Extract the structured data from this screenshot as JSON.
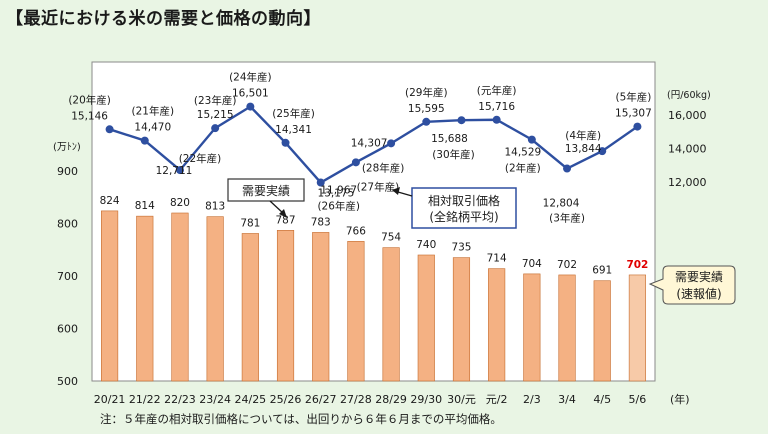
{
  "title": "【最近における米の需要と価格の動向】",
  "note": "注：５年産の相対取引価格については、出回りから６年６月までの平均価格。",
  "chart_data": {
    "type": "bar+line",
    "x_unit": "(年)",
    "categories": [
      "20/21",
      "21/22",
      "22/23",
      "23/24",
      "24/25",
      "25/26",
      "26/27",
      "27/28",
      "28/29",
      "29/30",
      "30/元",
      "元/2",
      "2/3",
      "3/4",
      "4/5",
      "5/6"
    ],
    "bar_series": {
      "name": "需要実績",
      "values": [
        824,
        814,
        820,
        813,
        781,
        787,
        783,
        766,
        754,
        740,
        735,
        714,
        704,
        702,
        691,
        702
      ],
      "axis_unit": "(万ﾄﾝ)",
      "ylim": [
        500,
        900
      ],
      "ticks": [
        500,
        600,
        700,
        800,
        900
      ],
      "color": "#f4b183",
      "last_color": "#f7caa8",
      "last_label_color": "#e00000"
    },
    "line_series": {
      "name": "相対取引価格",
      "subname": "(全銘柄平均)",
      "years": [
        "20年産",
        "21年産",
        "22年産",
        "23年産",
        "24年産",
        "25年産",
        "26年産",
        "27年産",
        "28年産",
        "29年産",
        "30年産",
        "元年産",
        "2年産",
        "3年産",
        "4年産",
        "5年産"
      ],
      "values": [
        15146,
        14470,
        12711,
        15215,
        16501,
        14341,
        11967,
        13175,
        14307,
        15595,
        15688,
        15716,
        14529,
        12804,
        13844,
        15307
      ],
      "value_labels": [
        "15,146",
        "14,470",
        "12,711",
        "15,215",
        "16,501",
        "14,341",
        "11,967",
        "13,175",
        "14,307",
        "15,595",
        "15,688",
        "15,716",
        "14,529",
        "12,804",
        "13,844",
        "15,307"
      ],
      "year_labels": [
        "(20年産)",
        "(21年産)",
        "(22年産)",
        "(23年産)",
        "(24年産)",
        "(25年産)",
        "(26年産)",
        "(27年産)",
        "(28年産)",
        "(29年産)",
        "(30年産)",
        "(元年産)",
        "(2年産)",
        "(3年産)",
        "(4年産)",
        "(5年産)"
      ],
      "axis_unit": "(円/60kg)",
      "ticks": [
        12000,
        14000,
        16000
      ],
      "tick_labels": [
        "12,000",
        "14,000",
        "16,000"
      ],
      "color": "#2e4fa0"
    },
    "annotations": {
      "demand_box": "需要実績",
      "price_box_line1": "相対取引価格",
      "price_box_line2": "(全銘柄平均)",
      "prelim_line1": "需要実績",
      "prelim_line2": "(速報値)"
    }
  }
}
